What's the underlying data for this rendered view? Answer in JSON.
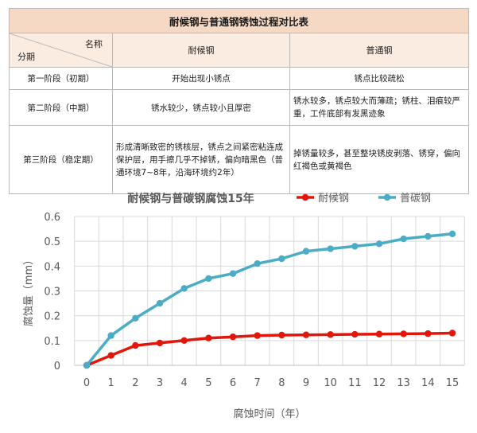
{
  "table": {
    "title": "耐候钢与普通钢锈蚀过程对比表",
    "header": {
      "diag_top": "名称",
      "diag_bottom": "分期",
      "col1": "耐候钢",
      "col2": "普通钢"
    },
    "rows": [
      {
        "stage": "第一阶段（初期）",
        "weathering": "开始出现小锈点",
        "ordinary": "锈点比较疏松"
      },
      {
        "stage": "第二阶段（中期）",
        "weathering": "锈水较少，锈点较小且厚密",
        "ordinary": "锈水较多，锈点较大而薄疏；锈柱、泪痕较严重，工件底部有发黑迹象"
      },
      {
        "stage": "第三阶段（稳定期）",
        "weathering": "形成清晰致密的锈核层，锈点之间紧密粘连成保护层，用手擦几乎不掉锈，偏向暗黑色（普通环境7~8年，沿海环境约2年）",
        "ordinary": "掉锈量较多，甚至整块锈皮剥落、锈穿，偏向红褐色或黄褐色"
      }
    ]
  },
  "chart_data": {
    "type": "line",
    "title": "耐候钢与普碳钢腐蚀15年",
    "xlabel": "腐蚀时间（年）",
    "ylabel": "腐蚀量（mm）",
    "x": [
      0,
      1,
      2,
      3,
      4,
      5,
      6,
      7,
      8,
      9,
      10,
      11,
      12,
      13,
      14,
      15
    ],
    "xlim": [
      0,
      15
    ],
    "ylim": [
      0,
      0.6
    ],
    "yticks": [
      0,
      0.1,
      0.2,
      0.3,
      0.4,
      0.5,
      0.6
    ],
    "ytick_labels": [
      "0",
      "0.1",
      "0.2",
      "0.3",
      "0.4",
      "0.5",
      "0.6"
    ],
    "grid": true,
    "legend_position": "top-right",
    "series": [
      {
        "name": "耐候钢",
        "color": "#e3160b",
        "values": [
          0,
          0.04,
          0.08,
          0.09,
          0.1,
          0.11,
          0.115,
          0.12,
          0.122,
          0.123,
          0.124,
          0.125,
          0.126,
          0.127,
          0.128,
          0.13
        ]
      },
      {
        "name": "普碳钢",
        "color": "#4bacc6",
        "values": [
          0,
          0.12,
          0.19,
          0.25,
          0.31,
          0.35,
          0.37,
          0.41,
          0.43,
          0.46,
          0.47,
          0.48,
          0.49,
          0.51,
          0.52,
          0.53
        ]
      }
    ]
  }
}
